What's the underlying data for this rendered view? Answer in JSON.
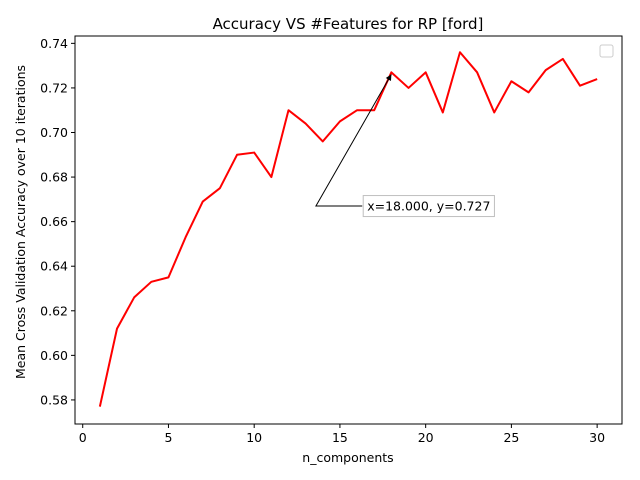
{
  "chart_data": {
    "type": "line",
    "title": "Accuracy VS #Features for RP [ford]",
    "xlabel": "n_components",
    "ylabel": "Mean Cross Validation Accuracy over 10 iterations",
    "xlim": [
      -0.45,
      31.45
    ],
    "ylim": [
      0.5692,
      0.7433
    ],
    "xticks": [
      0,
      5,
      10,
      15,
      20,
      25,
      30
    ],
    "yticks": [
      0.58,
      0.6,
      0.62,
      0.64,
      0.66,
      0.68,
      0.7,
      0.72,
      0.74
    ],
    "xtick_labels": [
      "0",
      "5",
      "10",
      "15",
      "20",
      "25",
      "30"
    ],
    "ytick_labels": [
      "0.58",
      "0.60",
      "0.62",
      "0.64",
      "0.66",
      "0.68",
      "0.70",
      "0.72",
      "0.74"
    ],
    "grid": false,
    "legend": "top-right (empty)",
    "series": [
      {
        "color": "#ff0000",
        "x": [
          1,
          2,
          3,
          4,
          5,
          6,
          7,
          8,
          9,
          10,
          11,
          12,
          13,
          14,
          15,
          16,
          17,
          18,
          19,
          20,
          21,
          22,
          23,
          24,
          25,
          26,
          27,
          28,
          29,
          30
        ],
        "y": [
          0.577,
          0.612,
          0.626,
          0.633,
          0.635,
          0.653,
          0.669,
          0.675,
          0.69,
          0.691,
          0.68,
          0.71,
          0.704,
          0.696,
          0.705,
          0.71,
          0.71,
          0.727,
          0.72,
          0.727,
          0.709,
          0.736,
          0.727,
          0.709,
          0.723,
          0.718,
          0.728,
          0.733,
          0.721,
          0.724
        ]
      }
    ],
    "annotation": {
      "text": "x=18.000, y=0.727",
      "point": [
        18,
        0.727
      ],
      "vertex": [
        13.6,
        0.667
      ],
      "box_left": [
        16.3,
        0.667
      ]
    }
  }
}
